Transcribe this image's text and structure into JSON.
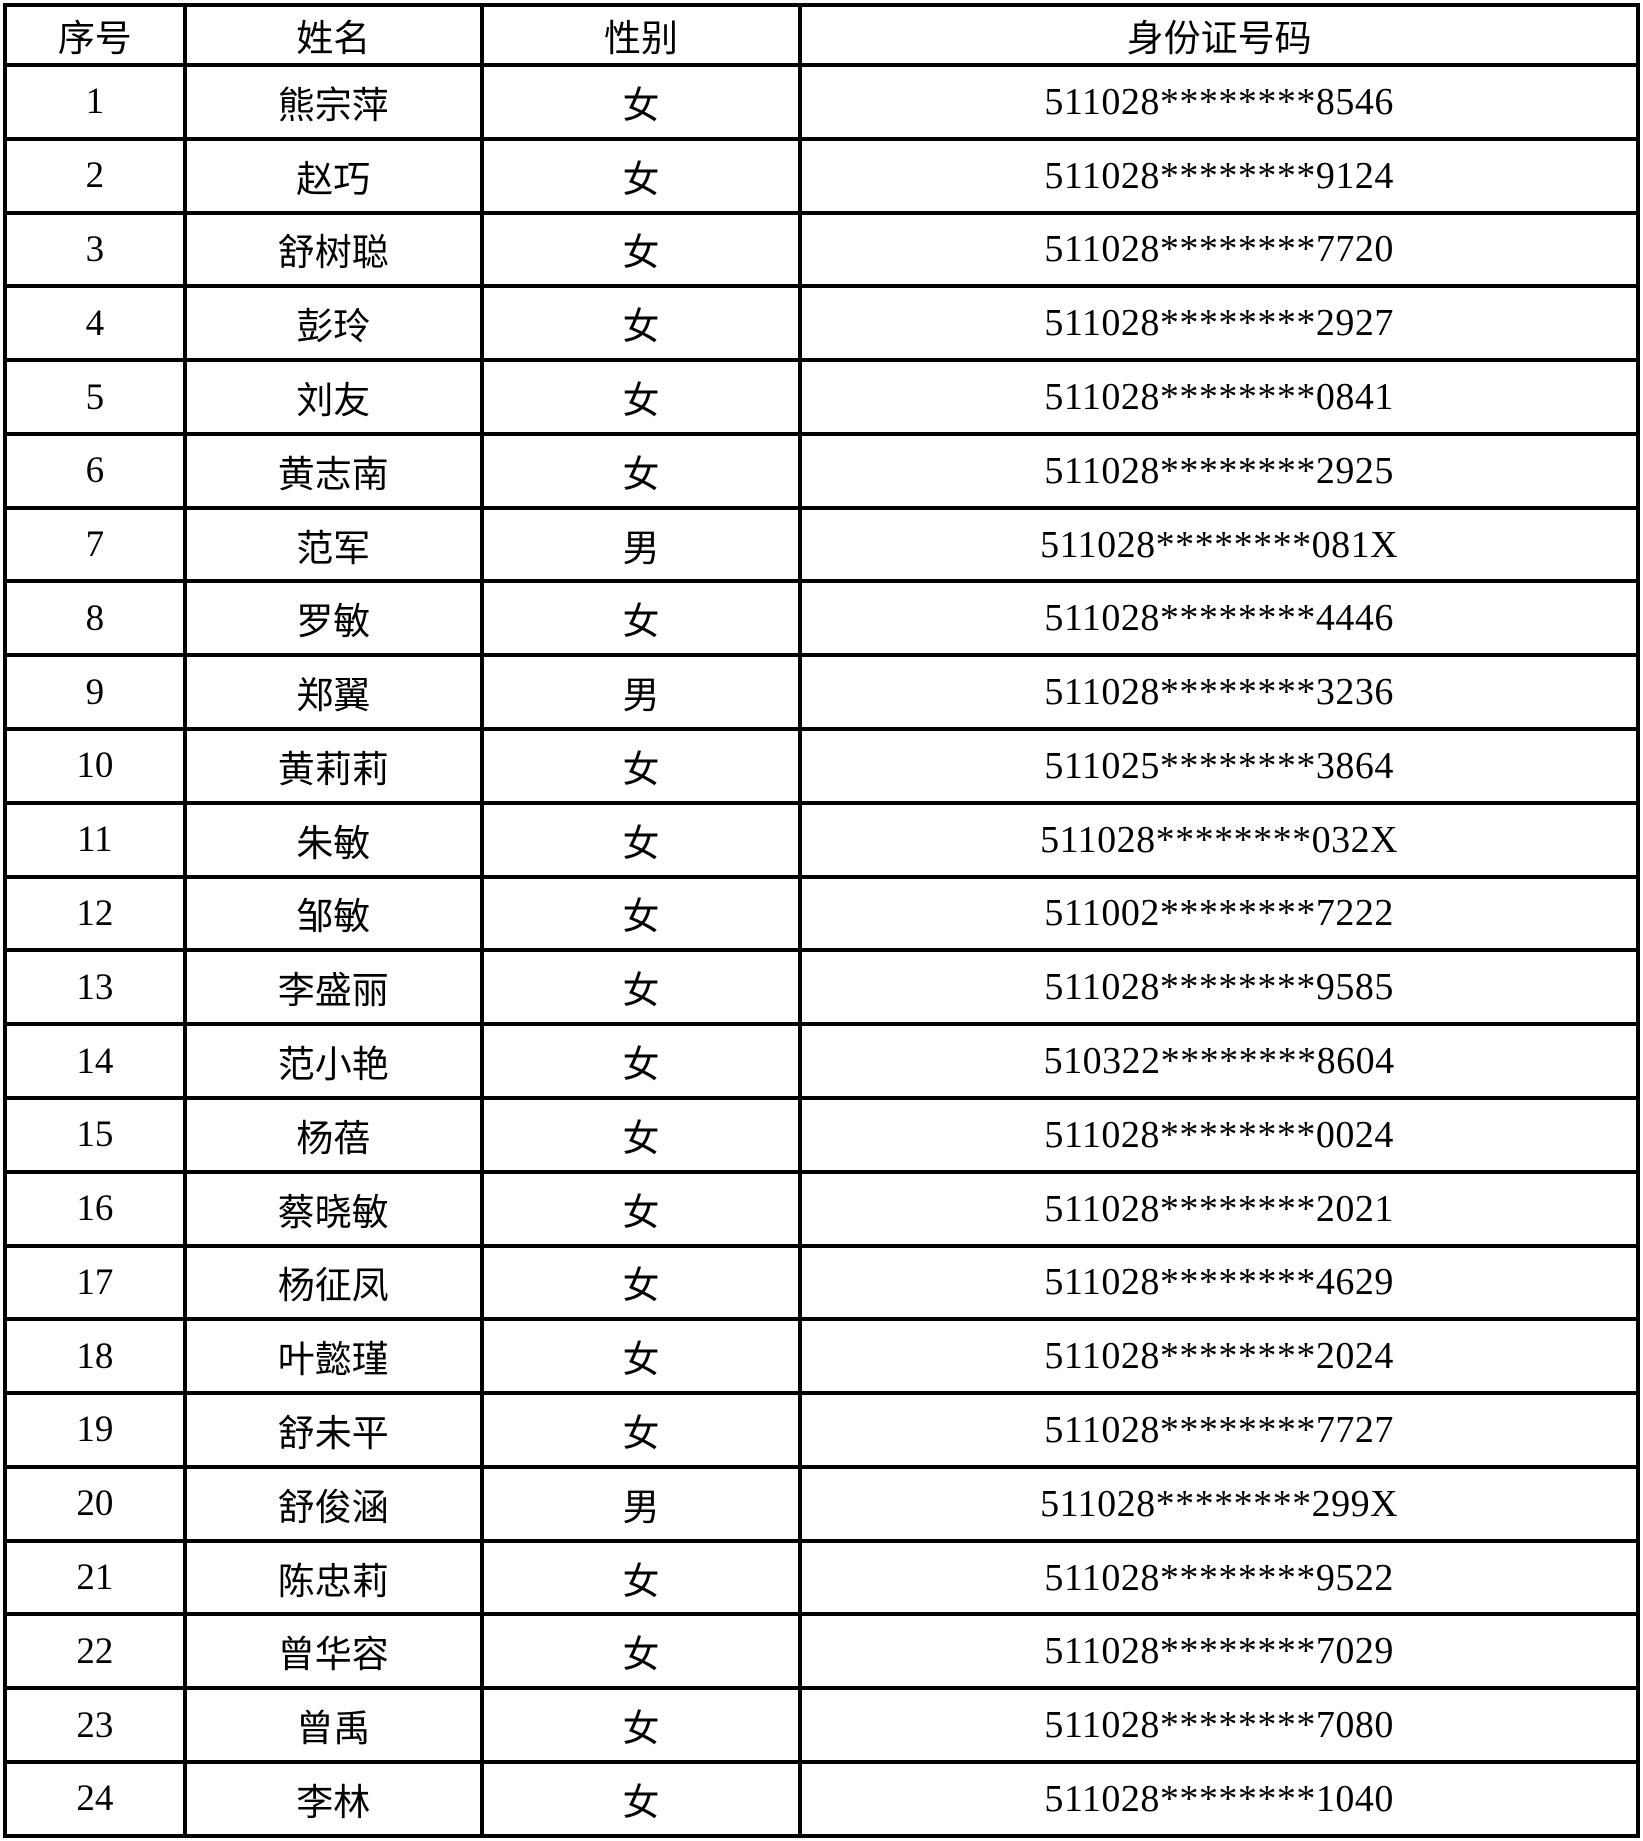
{
  "table": {
    "headers": {
      "no": "序号",
      "name": "姓名",
      "gender": "性别",
      "id": "身份证号码"
    },
    "rows": [
      {
        "no": "1",
        "name": "熊宗萍",
        "gender": "女",
        "id": "511028********8546"
      },
      {
        "no": "2",
        "name": "赵巧",
        "gender": "女",
        "id": "511028********9124"
      },
      {
        "no": "3",
        "name": "舒树聪",
        "gender": "女",
        "id": "511028********7720"
      },
      {
        "no": "4",
        "name": "彭玲",
        "gender": "女",
        "id": "511028********2927"
      },
      {
        "no": "5",
        "name": "刘友",
        "gender": "女",
        "id": "511028********0841"
      },
      {
        "no": "6",
        "name": "黄志南",
        "gender": "女",
        "id": "511028********2925"
      },
      {
        "no": "7",
        "name": "范军",
        "gender": "男",
        "id": "511028********081X"
      },
      {
        "no": "8",
        "name": "罗敏",
        "gender": "女",
        "id": "511028********4446"
      },
      {
        "no": "9",
        "name": "郑翼",
        "gender": "男",
        "id": "511028********3236"
      },
      {
        "no": "10",
        "name": "黄莉莉",
        "gender": "女",
        "id": "511025********3864"
      },
      {
        "no": "11",
        "name": "朱敏",
        "gender": "女",
        "id": "511028********032X"
      },
      {
        "no": "12",
        "name": "邹敏",
        "gender": "女",
        "id": "511002********7222"
      },
      {
        "no": "13",
        "name": "李盛丽",
        "gender": "女",
        "id": "511028********9585"
      },
      {
        "no": "14",
        "name": "范小艳",
        "gender": "女",
        "id": "510322********8604"
      },
      {
        "no": "15",
        "name": "杨蓓",
        "gender": "女",
        "id": "511028********0024"
      },
      {
        "no": "16",
        "name": "蔡晓敏",
        "gender": "女",
        "id": "511028********2021"
      },
      {
        "no": "17",
        "name": "杨征凤",
        "gender": "女",
        "id": "511028********4629"
      },
      {
        "no": "18",
        "name": "叶懿瑾",
        "gender": "女",
        "id": "511028********2024"
      },
      {
        "no": "19",
        "name": "舒未平",
        "gender": "女",
        "id": "511028********7727"
      },
      {
        "no": "20",
        "name": "舒俊涵",
        "gender": "男",
        "id": "511028********299X"
      },
      {
        "no": "21",
        "name": "陈忠莉",
        "gender": "女",
        "id": "511028********9522"
      },
      {
        "no": "22",
        "name": "曾华容",
        "gender": "女",
        "id": "511028********7029"
      },
      {
        "no": "23",
        "name": "曾禹",
        "gender": "女",
        "id": "511028********7080"
      },
      {
        "no": "24",
        "name": "李林",
        "gender": "女",
        "id": "511028********1040"
      }
    ]
  }
}
